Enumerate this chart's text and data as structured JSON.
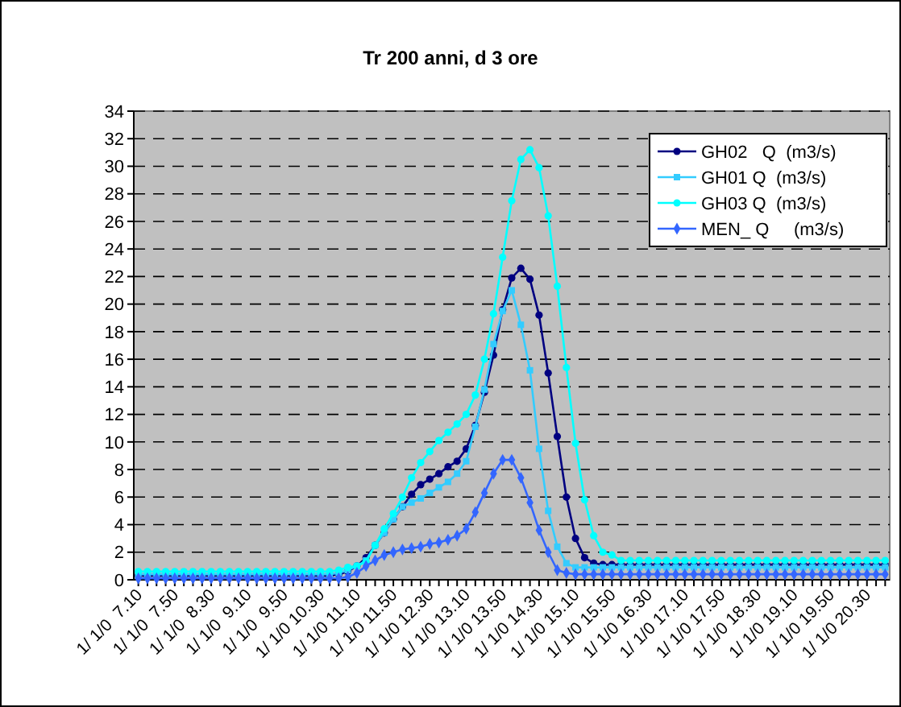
{
  "chart_data": {
    "type": "line",
    "title": "Tr 200 anni, d 3 ore",
    "categories": [
      "1/ 1/0  7.10",
      null,
      null,
      null,
      "1/ 1/0  7.50",
      null,
      null,
      null,
      "1/ 1/0  8.30",
      null,
      null,
      null,
      "1/ 1/0  9.10",
      null,
      null,
      null,
      "1/ 1/0  9.50",
      null,
      null,
      null,
      "1/ 1/0 10.30",
      null,
      null,
      null,
      "1/ 1/0 11.10",
      null,
      null,
      null,
      "1/ 1/0 11.50",
      null,
      null,
      null,
      "1/ 1/0 12.30",
      null,
      null,
      null,
      "1/ 1/0 13.10",
      null,
      null,
      null,
      "1/ 1/0 13.50",
      null,
      null,
      null,
      "1/ 1/0 14.30",
      null,
      null,
      null,
      "1/ 1/0 15.10",
      null,
      null,
      null,
      "1/ 1/0 15.50",
      null,
      null,
      null,
      "1/ 1/0 16.30",
      null,
      null,
      null,
      "1/ 1/0 17.10",
      null,
      null,
      null,
      "1/ 1/0 17.50",
      null,
      null,
      null,
      "1/ 1/0 18.30",
      null,
      null,
      null,
      "1/ 1/0 19.10",
      null,
      null,
      null,
      "1/ 1/0 19.50",
      null,
      null,
      null,
      "1/ 1/0 20.30",
      null,
      null
    ],
    "series": [
      {
        "name": "GH02   Q  (m3/s)",
        "color": "#000080",
        "marker": "circle",
        "values": [
          0.3,
          0.3,
          0.3,
          0.3,
          0.3,
          0.3,
          0.3,
          0.3,
          0.3,
          0.3,
          0.3,
          0.3,
          0.3,
          0.3,
          0.3,
          0.3,
          0.3,
          0.3,
          0.3,
          0.3,
          0.3,
          0.3,
          0.4,
          0.6,
          1.0,
          1.6,
          2.5,
          3.4,
          4.4,
          5.3,
          6.2,
          6.9,
          7.3,
          7.7,
          8.2,
          8.6,
          9.5,
          11.2,
          13.6,
          16.3,
          19.6,
          21.9,
          22.6,
          21.8,
          19.2,
          15.0,
          10.4,
          6.0,
          3.0,
          1.6,
          1.2,
          1.1,
          1.1,
          1.1,
          1.1,
          1.1,
          1.1,
          1.1,
          1.1,
          1.1,
          1.1,
          1.1,
          1.1,
          1.1,
          1.1,
          1.1,
          1.1,
          1.1,
          1.1,
          1.1,
          1.1,
          1.1,
          1.1,
          1.1,
          1.1,
          1.1,
          1.1,
          1.1,
          1.1,
          1.1,
          1.1,
          1.1,
          1.1
        ]
      },
      {
        "name": "GH01 Q  (m3/s)",
        "color": "#33ccff",
        "marker": "square",
        "values": [
          0.4,
          0.4,
          0.4,
          0.4,
          0.4,
          0.4,
          0.4,
          0.4,
          0.4,
          0.4,
          0.4,
          0.4,
          0.4,
          0.4,
          0.4,
          0.4,
          0.4,
          0.4,
          0.4,
          0.4,
          0.4,
          0.4,
          0.5,
          0.7,
          1.0,
          1.4,
          2.5,
          3.4,
          4.4,
          5.3,
          5.6,
          5.9,
          6.3,
          6.7,
          7.1,
          7.7,
          8.6,
          11.1,
          13.8,
          17.1,
          19.5,
          21.0,
          18.5,
          15.2,
          9.5,
          5.0,
          2.4,
          1.2,
          0.9,
          0.9,
          0.9,
          0.9,
          0.9,
          0.9,
          0.9,
          0.9,
          0.9,
          0.9,
          0.9,
          0.9,
          0.9,
          0.9,
          0.9,
          0.9,
          0.9,
          0.9,
          0.9,
          0.9,
          0.9,
          0.9,
          0.9,
          0.9,
          0.9,
          0.9,
          0.9,
          0.9,
          0.9,
          0.9,
          0.9,
          0.9,
          0.9,
          0.9,
          0.9
        ]
      },
      {
        "name": "GH03 Q  (m3/s)",
        "color": "#00ffff",
        "marker": "circle",
        "values": [
          0.6,
          0.6,
          0.6,
          0.6,
          0.6,
          0.6,
          0.6,
          0.6,
          0.6,
          0.6,
          0.6,
          0.6,
          0.6,
          0.6,
          0.6,
          0.6,
          0.6,
          0.6,
          0.6,
          0.6,
          0.6,
          0.6,
          0.7,
          0.9,
          1.0,
          1.3,
          2.5,
          3.7,
          4.8,
          6.0,
          7.4,
          8.5,
          9.3,
          10.1,
          10.7,
          11.3,
          12.0,
          13.4,
          16.0,
          19.3,
          23.4,
          27.5,
          30.5,
          31.2,
          29.9,
          26.4,
          21.3,
          15.4,
          9.9,
          5.8,
          3.2,
          2.0,
          1.8,
          1.4,
          1.4,
          1.4,
          1.4,
          1.4,
          1.4,
          1.4,
          1.4,
          1.4,
          1.4,
          1.4,
          1.4,
          1.4,
          1.4,
          1.4,
          1.4,
          1.4,
          1.4,
          1.4,
          1.4,
          1.4,
          1.4,
          1.4,
          1.4,
          1.4,
          1.4,
          1.4,
          1.4,
          1.4,
          1.4
        ]
      },
      {
        "name": "MEN_ Q     (m3/s)",
        "color": "#3366ff",
        "marker": "diamond",
        "values": [
          0.1,
          0.1,
          0.1,
          0.1,
          0.1,
          0.1,
          0.1,
          0.1,
          0.1,
          0.1,
          0.1,
          0.1,
          0.1,
          0.1,
          0.1,
          0.1,
          0.1,
          0.1,
          0.1,
          0.1,
          0.1,
          0.1,
          0.1,
          0.2,
          0.5,
          1.0,
          1.4,
          1.8,
          2.0,
          2.2,
          2.3,
          2.4,
          2.6,
          2.7,
          2.9,
          3.2,
          3.7,
          4.9,
          6.3,
          7.7,
          8.7,
          8.7,
          7.4,
          5.6,
          3.6,
          2.0,
          0.7,
          0.5,
          0.4,
          0.4,
          0.4,
          0.4,
          0.4,
          0.4,
          0.4,
          0.4,
          0.4,
          0.4,
          0.4,
          0.4,
          0.4,
          0.4,
          0.4,
          0.4,
          0.4,
          0.4,
          0.4,
          0.4,
          0.4,
          0.4,
          0.4,
          0.4,
          0.4,
          0.4,
          0.4,
          0.4,
          0.4,
          0.4,
          0.4,
          0.4,
          0.4,
          0.4,
          0.4
        ]
      }
    ],
    "ylim": [
      0,
      34
    ],
    "yticks": [
      0,
      2,
      4,
      6,
      8,
      10,
      12,
      14,
      16,
      18,
      20,
      22,
      24,
      26,
      28,
      30,
      32,
      34
    ],
    "grid": "y",
    "legend": "top right",
    "line_style": "solid"
  }
}
